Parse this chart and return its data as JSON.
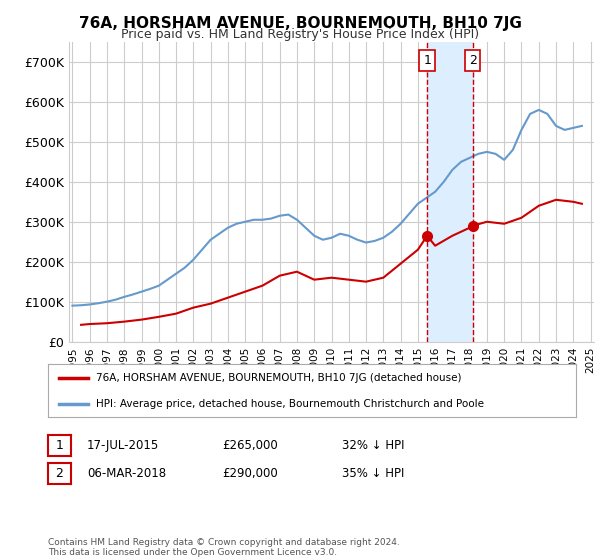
{
  "title": "76A, HORSHAM AVENUE, BOURNEMOUTH, BH10 7JG",
  "subtitle": "Price paid vs. HM Land Registry's House Price Index (HPI)",
  "legend_label_red": "76A, HORSHAM AVENUE, BOURNEMOUTH, BH10 7JG (detached house)",
  "legend_label_blue": "HPI: Average price, detached house, Bournemouth Christchurch and Poole",
  "footnote": "Contains HM Land Registry data © Crown copyright and database right 2024.\nThis data is licensed under the Open Government Licence v3.0.",
  "annotation1_label": "1",
  "annotation1_date": "17-JUL-2015",
  "annotation1_price": "£265,000",
  "annotation1_hpi": "32% ↓ HPI",
  "annotation2_label": "2",
  "annotation2_date": "06-MAR-2018",
  "annotation2_price": "£290,000",
  "annotation2_hpi": "35% ↓ HPI",
  "ylim": [
    0,
    750000
  ],
  "yticks": [
    0,
    100000,
    200000,
    300000,
    400000,
    500000,
    600000,
    700000
  ],
  "ytick_labels": [
    "£0",
    "£100K",
    "£200K",
    "£300K",
    "£400K",
    "£500K",
    "£600K",
    "£700K"
  ],
  "background_color": "#ffffff",
  "grid_color": "#cccccc",
  "red_color": "#cc0000",
  "blue_color": "#6699cc",
  "shaded_color": "#ddeeff",
  "annotation_line_color": "#cc0000",
  "marker1_x": 2015.54,
  "marker1_y": 265000,
  "marker2_x": 2018.17,
  "marker2_y": 290000,
  "hpi_x": [
    1995,
    1995.5,
    1996,
    1996.5,
    1997,
    1997.5,
    1998,
    1998.5,
    1999,
    1999.5,
    2000,
    2000.5,
    2001,
    2001.5,
    2002,
    2002.5,
    2003,
    2003.5,
    2004,
    2004.5,
    2005,
    2005.5,
    2006,
    2006.5,
    2007,
    2007.5,
    2008,
    2008.5,
    2009,
    2009.5,
    2010,
    2010.5,
    2011,
    2011.5,
    2012,
    2012.5,
    2013,
    2013.5,
    2014,
    2014.5,
    2015,
    2015.5,
    2016,
    2016.5,
    2017,
    2017.5,
    2018,
    2018.5,
    2019,
    2019.5,
    2020,
    2020.5,
    2021,
    2021.5,
    2022,
    2022.5,
    2023,
    2023.5,
    2024,
    2024.5
  ],
  "hpi_y": [
    90000,
    91000,
    93000,
    96000,
    100000,
    105000,
    112000,
    118000,
    125000,
    132000,
    140000,
    155000,
    170000,
    185000,
    205000,
    230000,
    255000,
    270000,
    285000,
    295000,
    300000,
    305000,
    305000,
    308000,
    315000,
    318000,
    305000,
    285000,
    265000,
    255000,
    260000,
    270000,
    265000,
    255000,
    248000,
    252000,
    260000,
    275000,
    295000,
    320000,
    345000,
    360000,
    375000,
    400000,
    430000,
    450000,
    460000,
    470000,
    475000,
    470000,
    455000,
    480000,
    530000,
    570000,
    580000,
    570000,
    540000,
    530000,
    535000,
    540000
  ],
  "price_x": [
    1995.5,
    1996,
    1997,
    1998,
    1999,
    2000,
    2001,
    2002,
    2003,
    2004,
    2005,
    2006,
    2007,
    2008,
    2009,
    2010,
    2011,
    2012,
    2013,
    2014,
    2015,
    2015.54,
    2016,
    2017,
    2018,
    2018.17,
    2019,
    2020,
    2021,
    2022,
    2023,
    2024,
    2024.5
  ],
  "price_y": [
    42000,
    44000,
    46000,
    50000,
    55000,
    62000,
    70000,
    85000,
    95000,
    110000,
    125000,
    140000,
    165000,
    175000,
    155000,
    160000,
    155000,
    150000,
    160000,
    195000,
    230000,
    265000,
    240000,
    265000,
    285000,
    290000,
    300000,
    295000,
    310000,
    340000,
    355000,
    350000,
    345000
  ],
  "xtick_years": [
    1995,
    1996,
    1997,
    1998,
    1999,
    2000,
    2001,
    2002,
    2003,
    2004,
    2005,
    2006,
    2007,
    2008,
    2009,
    2010,
    2011,
    2012,
    2013,
    2014,
    2015,
    2016,
    2017,
    2018,
    2019,
    2020,
    2021,
    2022,
    2023,
    2024,
    2025
  ]
}
